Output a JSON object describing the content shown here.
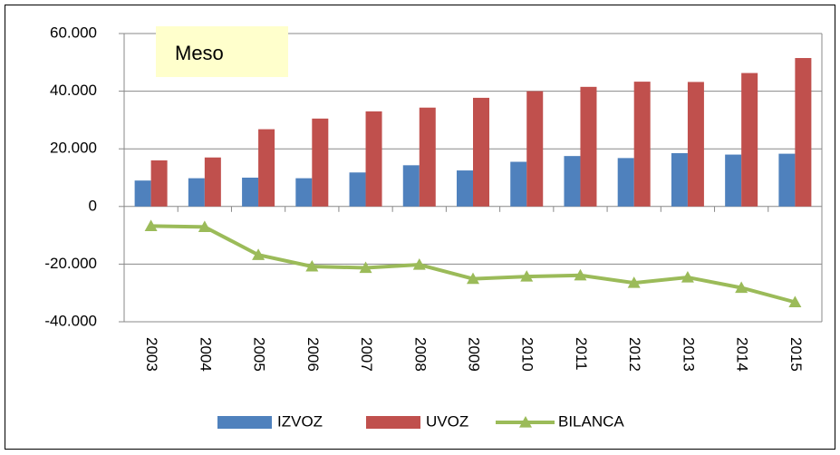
{
  "chart_data": {
    "type": "bar",
    "title": "Meso",
    "categories": [
      "2003",
      "2004",
      "2005",
      "2006",
      "2007",
      "2008",
      "2009",
      "2010",
      "2011",
      "2012",
      "2013",
      "2014",
      "2015"
    ],
    "series": [
      {
        "name": "IZVOZ",
        "type": "bar",
        "color": "#4f81bd",
        "values": [
          9000,
          9800,
          10000,
          9800,
          11800,
          14300,
          12500,
          15500,
          17500,
          16800,
          18500,
          18000,
          18300
        ]
      },
      {
        "name": "UVOZ",
        "type": "bar",
        "color": "#c0504d",
        "values": [
          16000,
          17000,
          26800,
          30500,
          33000,
          34300,
          37700,
          40000,
          41500,
          43300,
          43200,
          46300,
          51500
        ]
      },
      {
        "name": "BILANCA",
        "type": "line",
        "color": "#9bbb59",
        "values": [
          -6800,
          -7100,
          -16800,
          -20800,
          -21300,
          -20200,
          -25100,
          -24300,
          -23900,
          -26500,
          -24600,
          -28200,
          -33200
        ]
      }
    ],
    "ylim": [
      -40000,
      60000
    ],
    "yticks": [
      {
        "value": -40000,
        "label": "-40.000"
      },
      {
        "value": -20000,
        "label": "-20.000"
      },
      0,
      {
        "value": 20000,
        "label": "20.000"
      },
      {
        "value": 40000,
        "label": "40.000"
      },
      {
        "value": 60000,
        "label": "60.000"
      }
    ],
    "grid": true,
    "legend": "bottom"
  }
}
